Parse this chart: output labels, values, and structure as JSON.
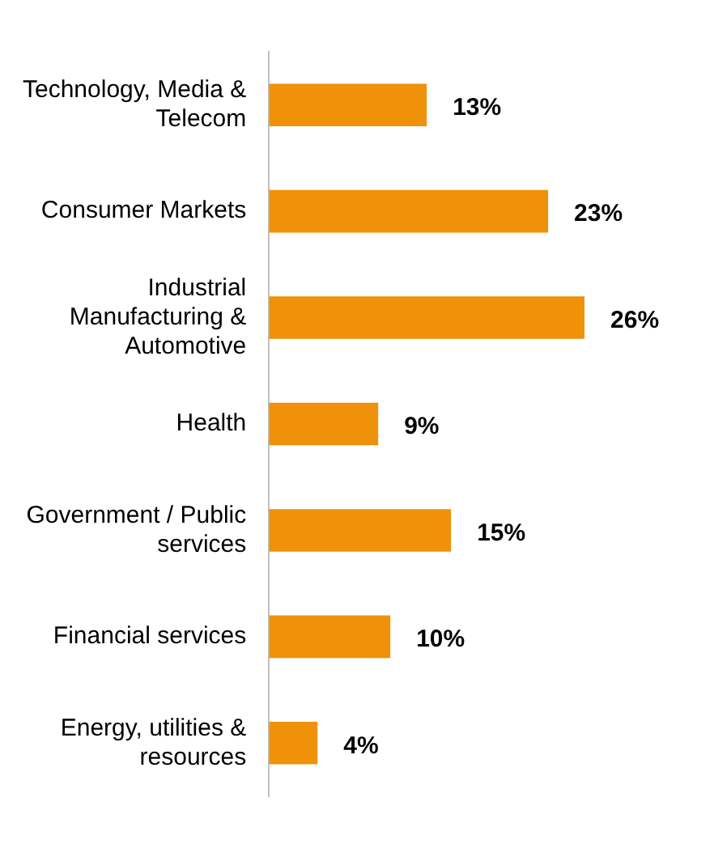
{
  "chart_data": {
    "type": "bar",
    "orientation": "horizontal",
    "categories": [
      "Technology, Media & Telecom",
      "Consumer Markets",
      "Industrial Manufacturing & Automotive",
      "Health",
      "Government / Public services",
      "Financial services",
      "Energy, utilities & resources"
    ],
    "values": [
      13,
      23,
      26,
      9,
      15,
      10,
      4
    ],
    "color": "#ef920a",
    "value_labels": [
      "13%",
      "23%",
      "26%",
      "9%",
      "15%",
      "10%",
      "4%"
    ],
    "grid": false,
    "legend": false
  }
}
